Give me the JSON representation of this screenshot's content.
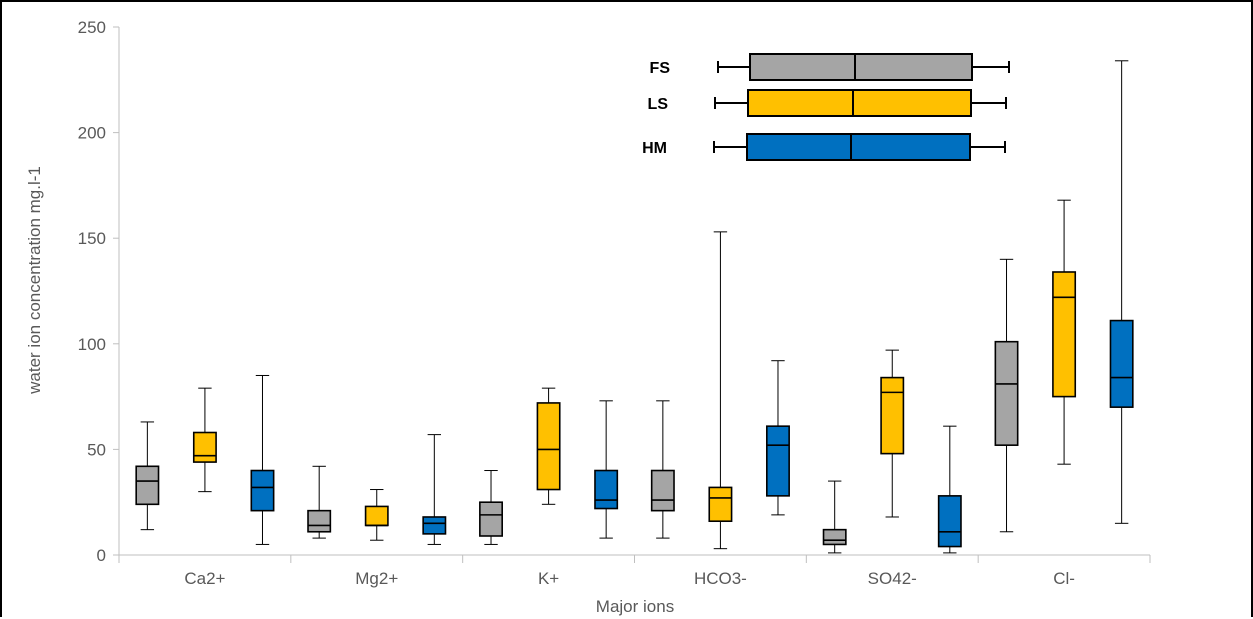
{
  "chart_data": {
    "type": "box",
    "title": "",
    "xlabel": "Major ions",
    "ylabel": "water ion concentration mg.l-1",
    "ylim": [
      0,
      250
    ],
    "yticks": [
      0,
      50,
      100,
      150,
      200,
      250
    ],
    "grid": false,
    "legend_position": "top-center",
    "categories": [
      "Ca2+",
      "Mg2+",
      "K+",
      "HCO3-",
      "SO42-",
      "Cl-"
    ],
    "series": [
      {
        "name": "FS",
        "color": "#a5a5a5",
        "boxes": [
          {
            "min": 12,
            "q1": 24,
            "median": 35,
            "q3": 42,
            "max": 63
          },
          {
            "min": 8,
            "q1": 11,
            "median": 14,
            "q3": 21,
            "max": 42
          },
          {
            "min": 5,
            "q1": 9,
            "median": 19,
            "q3": 25,
            "max": 40
          },
          {
            "min": 8,
            "q1": 21,
            "median": 26,
            "q3": 40,
            "max": 73
          },
          {
            "min": 1,
            "q1": 5,
            "median": 7,
            "q3": 12,
            "max": 35
          },
          {
            "min": 11,
            "q1": 52,
            "median": 81,
            "q3": 101,
            "max": 140
          }
        ]
      },
      {
        "name": "LS",
        "color": "#ffc000",
        "boxes": [
          {
            "min": 30,
            "q1": 44,
            "median": 47,
            "q3": 58,
            "max": 79
          },
          {
            "min": 7,
            "q1": 14,
            "median": 14,
            "q3": 23,
            "max": 31
          },
          {
            "min": 24,
            "q1": 31,
            "median": 50,
            "q3": 72,
            "max": 79
          },
          {
            "min": 3,
            "q1": 16,
            "median": 27,
            "q3": 32,
            "max": 153
          },
          {
            "min": 18,
            "q1": 48,
            "median": 77,
            "q3": 84,
            "max": 97
          },
          {
            "min": 43,
            "q1": 75,
            "median": 122,
            "q3": 134,
            "max": 168
          }
        ]
      },
      {
        "name": "HM",
        "color": "#0070c0",
        "boxes": [
          {
            "min": 5,
            "q1": 21,
            "median": 32,
            "q3": 40,
            "max": 85
          },
          {
            "min": 5,
            "q1": 10,
            "median": 15,
            "q3": 18,
            "max": 57
          },
          {
            "min": 8,
            "q1": 22,
            "median": 26,
            "q3": 40,
            "max": 73
          },
          {
            "min": 19,
            "q1": 28,
            "median": 52,
            "q3": 61,
            "max": 92
          },
          {
            "min": 1,
            "q1": 4,
            "median": 11,
            "q3": 28,
            "max": 61
          },
          {
            "min": 15,
            "q1": 70,
            "median": 84,
            "q3": 111,
            "max": 234
          }
        ]
      }
    ]
  }
}
